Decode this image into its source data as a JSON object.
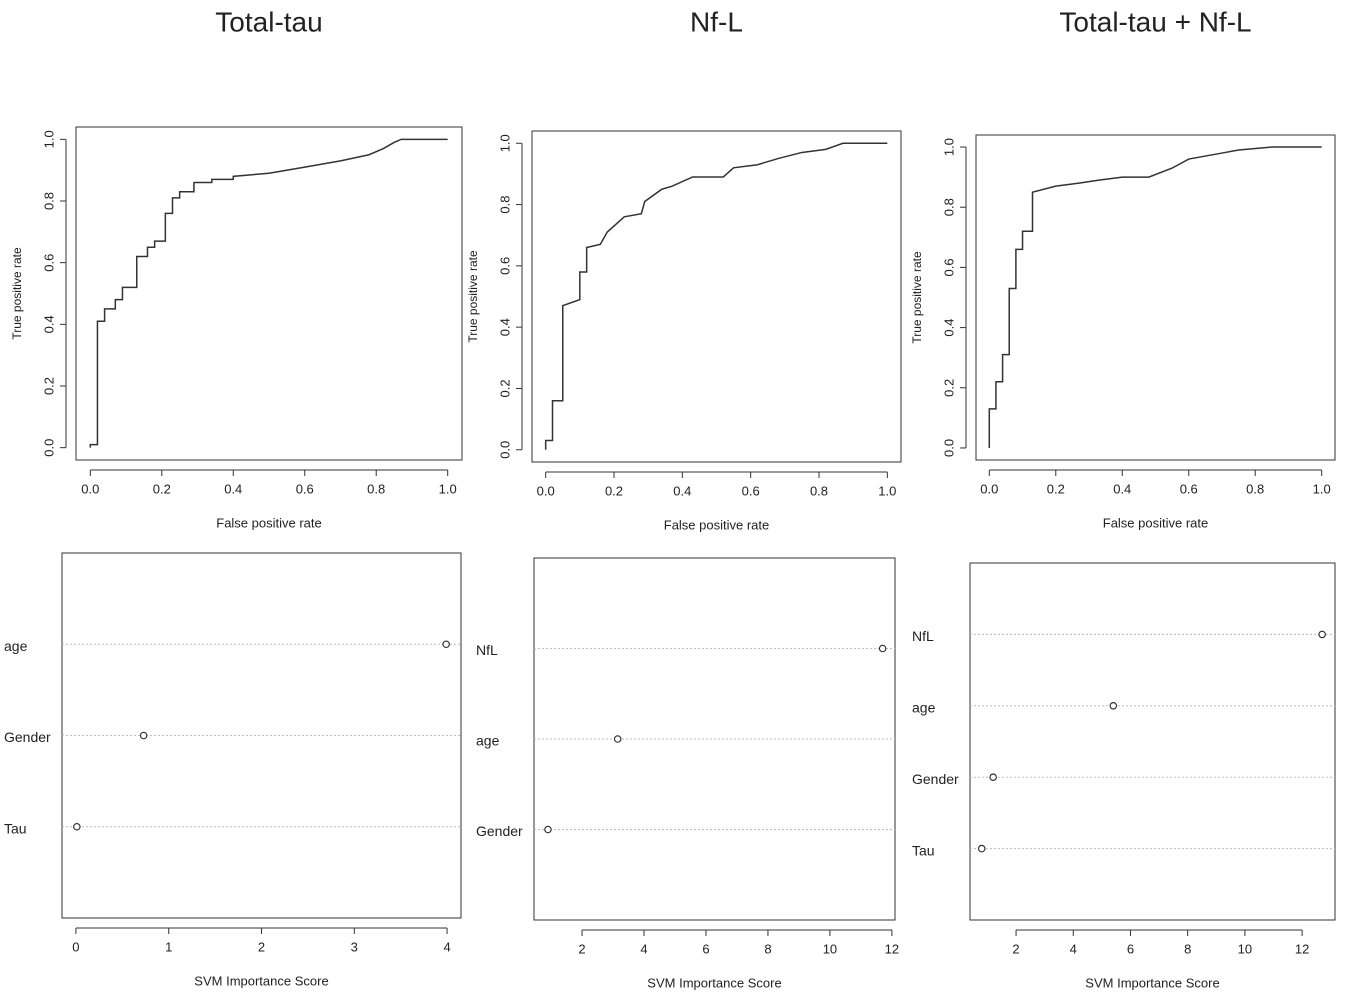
{
  "chart_data": [
    {
      "type": "line",
      "title": "Total-tau",
      "xlabel": "False positive rate",
      "ylabel": "True positive rate",
      "color": "#333333",
      "x": [
        0,
        0,
        0.02,
        0.02,
        0.04,
        0.04,
        0.07,
        0.07,
        0.09,
        0.09,
        0.13,
        0.13,
        0.16,
        0.16,
        0.18,
        0.18,
        0.21,
        0.21,
        0.23,
        0.23,
        0.25,
        0.25,
        0.29,
        0.29,
        0.34,
        0.34,
        0.4,
        0.4,
        0.5,
        0.6,
        0.7,
        0.78,
        0.82,
        0.85,
        0.87,
        1.0
      ],
      "values": [
        0,
        0.01,
        0.01,
        0.41,
        0.41,
        0.45,
        0.45,
        0.48,
        0.48,
        0.52,
        0.52,
        0.62,
        0.62,
        0.65,
        0.65,
        0.67,
        0.67,
        0.76,
        0.76,
        0.81,
        0.81,
        0.83,
        0.83,
        0.86,
        0.86,
        0.87,
        0.87,
        0.88,
        0.89,
        0.91,
        0.93,
        0.95,
        0.97,
        0.99,
        1.0,
        1.0
      ],
      "xlim": [
        -0.04,
        1.04
      ],
      "ylim": [
        -0.04,
        1.04
      ],
      "xticks": [
        {
          "value": 0,
          "label": "0.0"
        },
        0.2,
        0.4,
        0.6,
        0.8,
        {
          "value": 1,
          "label": "1.0"
        }
      ],
      "yticks": [
        {
          "value": 0,
          "label": "0.0"
        },
        0.2,
        0.4,
        0.6,
        0.8,
        {
          "value": 1,
          "label": "1.0"
        }
      ]
    },
    {
      "type": "line",
      "title": "Nf-L",
      "xlabel": "False positive rate",
      "ylabel": "True positive rate",
      "color": "#333333",
      "x": [
        0,
        0,
        0.02,
        0.02,
        0.05,
        0.05,
        0.1,
        0.1,
        0.12,
        0.12,
        0.16,
        0.18,
        0.23,
        0.28,
        0.29,
        0.34,
        0.37,
        0.43,
        0.52,
        0.55,
        0.62,
        0.68,
        0.75,
        0.82,
        0.87,
        1.0
      ],
      "values": [
        0,
        0.03,
        0.03,
        0.16,
        0.16,
        0.47,
        0.49,
        0.58,
        0.58,
        0.66,
        0.67,
        0.71,
        0.76,
        0.77,
        0.81,
        0.85,
        0.86,
        0.89,
        0.89,
        0.92,
        0.93,
        0.95,
        0.97,
        0.98,
        1.0,
        1.0
      ],
      "xlim": [
        -0.04,
        1.04
      ],
      "ylim": [
        -0.04,
        1.04
      ],
      "xticks": [
        {
          "value": 0,
          "label": "0.0"
        },
        0.2,
        0.4,
        0.6,
        0.8,
        {
          "value": 1,
          "label": "1.0"
        }
      ],
      "yticks": [
        {
          "value": 0,
          "label": "0.0"
        },
        0.2,
        0.4,
        0.6,
        0.8,
        {
          "value": 1,
          "label": "1.0"
        }
      ]
    },
    {
      "type": "line",
      "title": "Total-tau + Nf-L",
      "xlabel": "False positive rate",
      "ylabel": "True positive rate",
      "color": "#333333",
      "x": [
        0,
        0,
        0.02,
        0.02,
        0.04,
        0.04,
        0.06,
        0.06,
        0.08,
        0.08,
        0.1,
        0.1,
        0.13,
        0.13,
        0.2,
        0.27,
        0.33,
        0.4,
        0.48,
        0.55,
        0.6,
        0.7,
        0.75,
        0.85,
        1.0
      ],
      "values": [
        0,
        0.13,
        0.13,
        0.22,
        0.22,
        0.31,
        0.31,
        0.53,
        0.53,
        0.66,
        0.66,
        0.72,
        0.72,
        0.85,
        0.87,
        0.88,
        0.89,
        0.9,
        0.9,
        0.93,
        0.96,
        0.98,
        0.99,
        1.0,
        1.0
      ],
      "xlim": [
        -0.04,
        1.04
      ],
      "ylim": [
        -0.04,
        1.04
      ],
      "xticks": [
        {
          "value": 0,
          "label": "0.0"
        },
        0.2,
        0.4,
        0.6,
        0.8,
        {
          "value": 1,
          "label": "1.0"
        }
      ],
      "yticks": [
        {
          "value": 0,
          "label": "0.0"
        },
        0.2,
        0.4,
        0.6,
        0.8,
        {
          "value": 1,
          "label": "1.0"
        }
      ]
    },
    {
      "type": "dot",
      "xlabel": "SVM Importance Score",
      "color": "#333333",
      "grid": true,
      "categories": [
        "age",
        "Gender",
        "Tau"
      ],
      "values": [
        3.99,
        0.73,
        0.01
      ],
      "xlim": [
        -0.15,
        4.15
      ],
      "xticks": [
        0,
        1,
        2,
        3,
        4
      ]
    },
    {
      "type": "dot",
      "xlabel": "SVM Importance Score",
      "color": "#333333",
      "grid": true,
      "categories": [
        "NfL",
        "age",
        "Gender"
      ],
      "values": [
        11.7,
        3.15,
        0.9
      ],
      "xlim": [
        0.45,
        12.1
      ],
      "xticks": [
        2,
        4,
        6,
        8,
        10,
        12
      ]
    },
    {
      "type": "dot",
      "xlabel": "SVM Importance Score",
      "color": "#333333",
      "grid": true,
      "categories": [
        "NfL",
        "age",
        "Gender",
        "Tau"
      ],
      "values": [
        12.7,
        5.4,
        1.2,
        0.8
      ],
      "xlim": [
        0.39,
        13.15
      ],
      "xticks": [
        2,
        4,
        6,
        8,
        10,
        12
      ]
    }
  ]
}
